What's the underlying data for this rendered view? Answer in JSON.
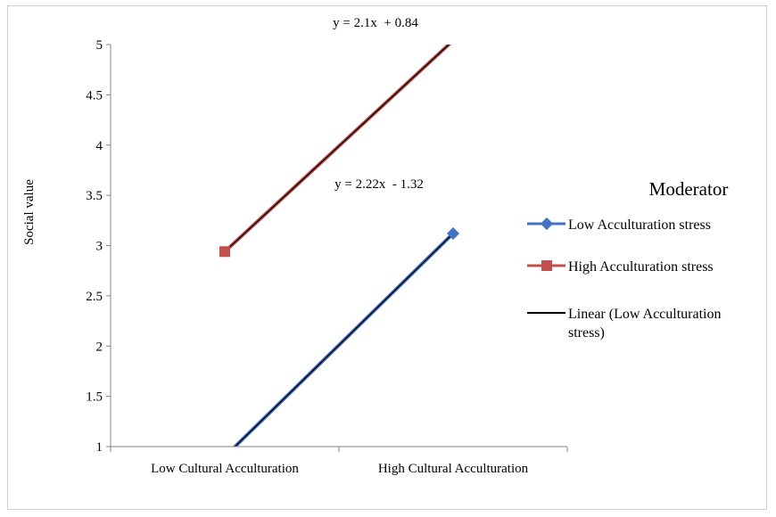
{
  "chart_data": {
    "type": "line",
    "categories": [
      "Low Cultural Acculturation",
      "High Cultural Acculturation"
    ],
    "ylabel": "Social value",
    "xlabel": "",
    "ylim": [
      1,
      5
    ],
    "yticks": [
      "1",
      "1.5",
      "2",
      "2.5",
      "3",
      "3.5",
      "4",
      "4.5",
      "5"
    ],
    "grid": false,
    "legend_position": "right",
    "legend_title": "Moderator",
    "series": [
      {
        "name": "Low Acculturation stress",
        "values": [
          0.9,
          3.12
        ],
        "color": "#4472c4",
        "marker": "diamond"
      },
      {
        "name": "High Acculturation stress",
        "values": [
          2.94,
          5.04
        ],
        "color": "#c0504d",
        "marker": "square"
      }
    ],
    "trendlines": [
      {
        "name": "Linear (Low Acculturation stress)",
        "series": "Low Acculturation stress",
        "color": "#000000",
        "slope": 2.22,
        "intercept": -1.32
      },
      {
        "series": "High Acculturation stress",
        "color": "#000000",
        "slope": 2.1,
        "intercept": 0.84
      }
    ],
    "annotations": [
      "y = 2.1x  + 0.84",
      "y = 2.22x  - 1.32"
    ],
    "legend_entries": [
      "Low Acculturation stress",
      "High Acculturation stress",
      "Linear (Low Acculturation",
      "stress)"
    ]
  }
}
